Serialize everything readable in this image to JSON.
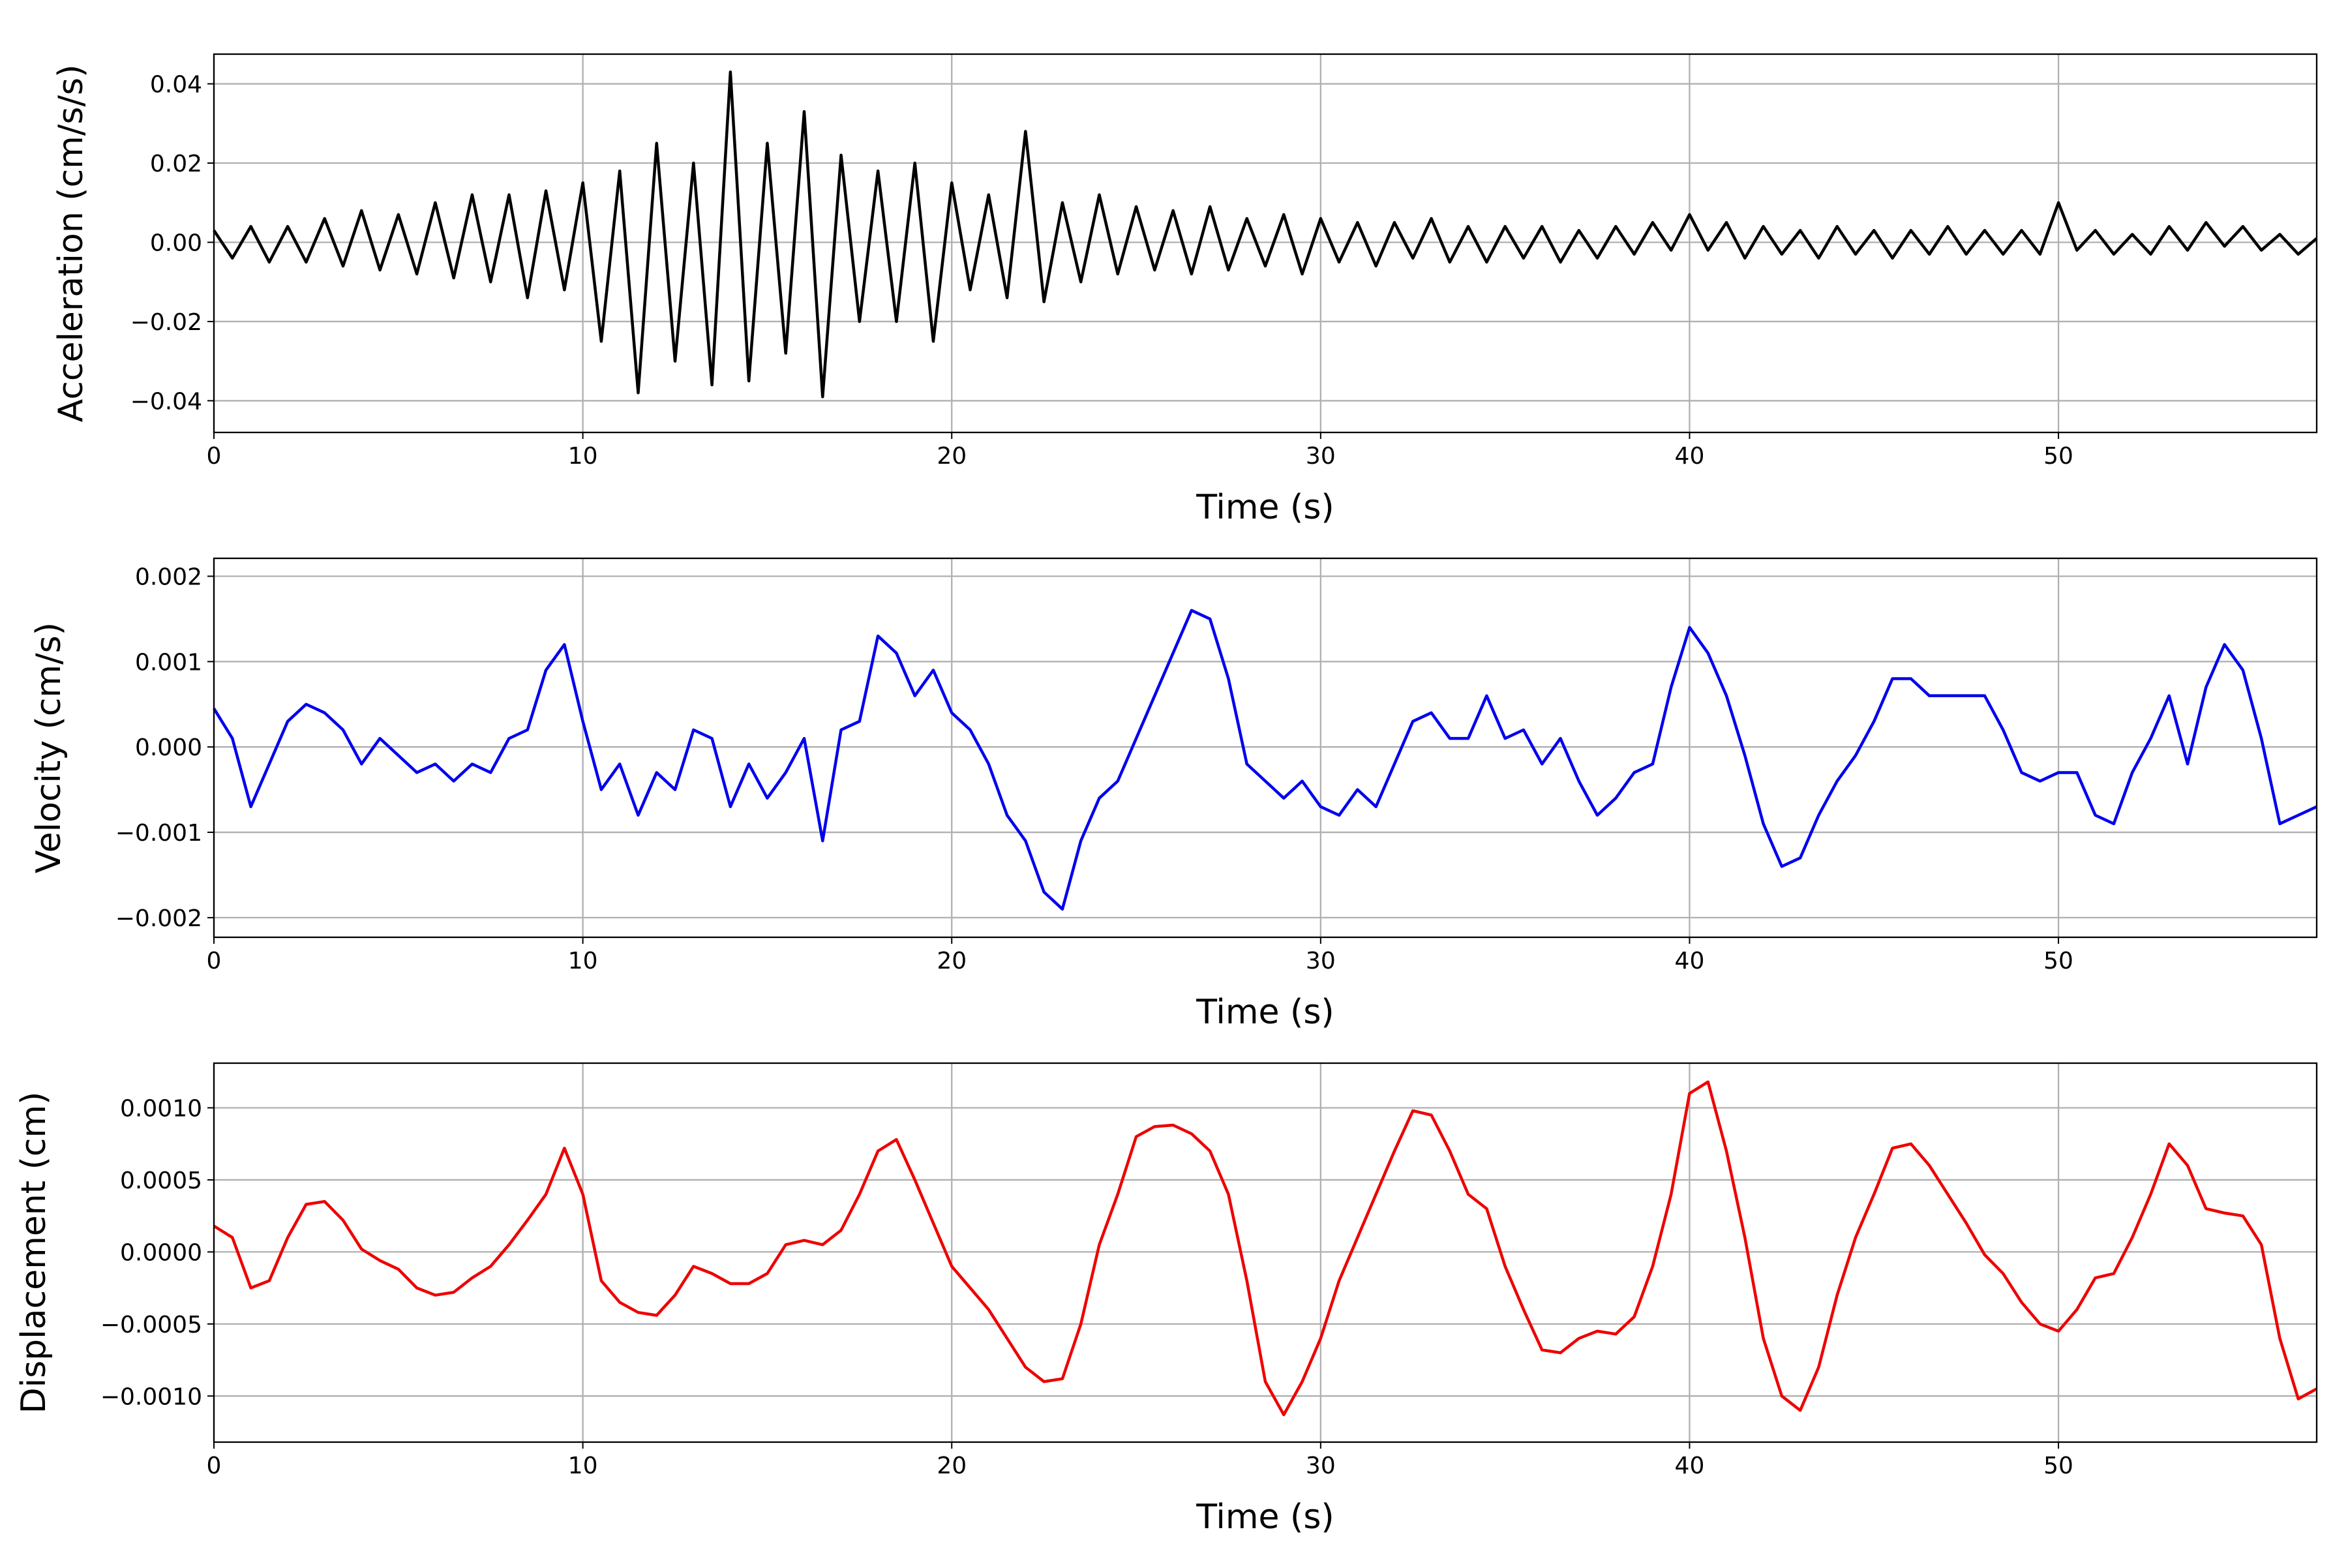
{
  "chart_data": [
    {
      "type": "line",
      "ylabel": "Acceleration (cm/s/s)",
      "xlabel": "Time (s)",
      "color": "#000000",
      "grid": true,
      "xlim": [
        0,
        57
      ],
      "xticks": [
        0,
        10,
        20,
        30,
        40,
        50
      ],
      "ylim": [
        -0.048,
        0.0475
      ],
      "yticks": [
        {
          "value": -0.04,
          "label": "−0.04"
        },
        {
          "value": -0.02,
          "label": "−0.02"
        },
        {
          "value": 0,
          "label": "0.00"
        },
        {
          "value": 0.02,
          "label": "0.02"
        },
        {
          "value": 0.04,
          "label": "0.04"
        }
      ],
      "x": [
        0,
        0.5,
        1,
        1.5,
        2,
        2.5,
        3,
        3.5,
        4,
        4.5,
        5,
        5.5,
        6,
        6.5,
        7,
        7.5,
        8,
        8.5,
        9,
        9.5,
        10,
        10.5,
        11,
        11.5,
        12,
        12.5,
        13,
        13.5,
        14,
        14.5,
        15,
        15.5,
        16,
        16.5,
        17,
        17.5,
        18,
        18.5,
        19,
        19.5,
        20,
        20.5,
        21,
        21.5,
        22,
        22.5,
        23,
        23.5,
        24,
        24.5,
        25,
        25.5,
        26,
        26.5,
        27,
        27.5,
        28,
        28.5,
        29,
        29.5,
        30,
        30.5,
        31,
        31.5,
        32,
        32.5,
        33,
        33.5,
        34,
        34.5,
        35,
        35.5,
        36,
        36.5,
        37,
        37.5,
        38,
        38.5,
        39,
        39.5,
        40,
        40.5,
        41,
        41.5,
        42,
        42.5,
        43,
        43.5,
        44,
        44.5,
        45,
        45.5,
        46,
        46.5,
        47,
        47.5,
        48,
        48.5,
        49,
        49.5,
        50,
        50.5,
        51,
        51.5,
        52,
        52.5,
        53,
        53.5,
        54,
        54.5,
        55,
        55.5,
        56,
        56.5,
        57
      ],
      "values": [
        0.003,
        -0.004,
        0.004,
        -0.005,
        0.004,
        -0.005,
        0.006,
        -0.006,
        0.008,
        -0.007,
        0.007,
        -0.008,
        0.01,
        -0.009,
        0.012,
        -0.01,
        0.012,
        -0.014,
        0.013,
        -0.012,
        0.015,
        -0.025,
        0.018,
        -0.038,
        0.025,
        -0.03,
        0.02,
        -0.036,
        0.043,
        -0.035,
        0.025,
        -0.028,
        0.033,
        -0.039,
        0.022,
        -0.02,
        0.018,
        -0.02,
        0.02,
        -0.025,
        0.015,
        -0.012,
        0.012,
        -0.014,
        0.028,
        -0.015,
        0.01,
        -0.01,
        0.012,
        -0.008,
        0.009,
        -0.007,
        0.008,
        -0.008,
        0.009,
        -0.007,
        0.006,
        -0.006,
        0.007,
        -0.008,
        0.006,
        -0.005,
        0.005,
        -0.006,
        0.005,
        -0.004,
        0.006,
        -0.005,
        0.004,
        -0.005,
        0.004,
        -0.004,
        0.004,
        -0.005,
        0.003,
        -0.004,
        0.004,
        -0.003,
        0.005,
        -0.002,
        0.007,
        -0.002,
        0.005,
        -0.004,
        0.004,
        -0.003,
        0.003,
        -0.004,
        0.004,
        -0.003,
        0.003,
        -0.004,
        0.003,
        -0.003,
        0.004,
        -0.003,
        0.003,
        -0.003,
        0.003,
        -0.003,
        0.01,
        -0.002,
        0.003,
        -0.003,
        0.002,
        -0.003,
        0.004,
        -0.002,
        0.005,
        -0.001,
        0.004,
        -0.002,
        0.002,
        -0.003,
        0.001
      ]
    },
    {
      "type": "line",
      "ylabel": "Velocity (cm/s)",
      "xlabel": "Time (s)",
      "color": "#0000ee",
      "grid": true,
      "xlim": [
        0,
        57
      ],
      "xticks": [
        0,
        10,
        20,
        30,
        40,
        50
      ],
      "ylim": [
        -0.00223,
        0.00221
      ],
      "yticks": [
        {
          "value": -0.002,
          "label": "−0.002"
        },
        {
          "value": -0.001,
          "label": "−0.001"
        },
        {
          "value": 0,
          "label": "0.000"
        },
        0.001,
        0.002
      ],
      "x": [
        0,
        0.5,
        1,
        1.5,
        2,
        2.5,
        3,
        3.5,
        4,
        4.5,
        5,
        5.5,
        6,
        6.5,
        7,
        7.5,
        8,
        8.5,
        9,
        9.5,
        10,
        10.5,
        11,
        11.5,
        12,
        12.5,
        13,
        13.5,
        14,
        14.5,
        15,
        15.5,
        16,
        16.5,
        17,
        17.5,
        18,
        18.5,
        19,
        19.5,
        20,
        20.5,
        21,
        21.5,
        22,
        22.5,
        23,
        23.5,
        24,
        24.5,
        25,
        25.5,
        26,
        26.5,
        27,
        27.5,
        28,
        28.5,
        29,
        29.5,
        30,
        30.5,
        31,
        31.5,
        32,
        32.5,
        33,
        33.5,
        34,
        34.5,
        35,
        35.5,
        36,
        36.5,
        37,
        37.5,
        38,
        38.5,
        39,
        39.5,
        40,
        40.5,
        41,
        41.5,
        42,
        42.5,
        43,
        43.5,
        44,
        44.5,
        45,
        45.5,
        46,
        46.5,
        47,
        47.5,
        48,
        48.5,
        49,
        49.5,
        50,
        50.5,
        51,
        51.5,
        52,
        52.5,
        53,
        53.5,
        54,
        54.5,
        55,
        55.5,
        56,
        56.5,
        57
      ],
      "values": [
        0.00045,
        0.0001,
        -0.0007,
        -0.0002,
        0.0003,
        0.0005,
        0.0004,
        0.0002,
        -0.0002,
        0.0001,
        -0.0001,
        -0.0003,
        -0.0002,
        -0.0004,
        -0.0002,
        -0.0003,
        0.0001,
        0.0002,
        0.0009,
        0.0012,
        0.0003,
        -0.0005,
        -0.0002,
        -0.0008,
        -0.0003,
        -0.0005,
        0.0002,
        0.0001,
        -0.0007,
        -0.0002,
        -0.0006,
        -0.0003,
        0.0001,
        -0.0011,
        0.0002,
        0.0003,
        0.0013,
        0.0011,
        0.0006,
        0.0009,
        0.0004,
        0.0002,
        -0.0002,
        -0.0008,
        -0.0011,
        -0.0017,
        -0.0019,
        -0.0011,
        -0.0006,
        -0.0004,
        0.0001,
        0.0006,
        0.0011,
        0.0016,
        0.0015,
        0.0008,
        -0.0002,
        -0.0004,
        -0.0006,
        -0.0004,
        -0.0007,
        -0.0008,
        -0.0005,
        -0.0007,
        -0.0002,
        0.0003,
        0.0004,
        0.0001,
        0.0001,
        0.0006,
        0.0001,
        0.0002,
        -0.0002,
        0.0001,
        -0.0004,
        -0.0008,
        -0.0006,
        -0.0003,
        -0.0002,
        0.0007,
        0.0014,
        0.0011,
        0.0006,
        -0.0001,
        -0.0009,
        -0.0014,
        -0.0013,
        -0.0008,
        -0.0004,
        -0.0001,
        0.0003,
        0.0008,
        0.0008,
        0.0006,
        0.0006,
        0.0006,
        0.0006,
        0.0002,
        -0.0003,
        -0.0004,
        -0.0003,
        -0.0003,
        -0.0008,
        -0.0009,
        -0.0003,
        0.0001,
        0.0006,
        -0.0002,
        0.0007,
        0.0012,
        0.0009,
        0.0001,
        -0.0009,
        -0.0008,
        -0.0007
      ]
    },
    {
      "type": "line",
      "ylabel": "Displacement (cm)",
      "xlabel": "Time (s)",
      "color": "#ee0000",
      "grid": true,
      "xlim": [
        0,
        57
      ],
      "xticks": [
        0,
        10,
        20,
        30,
        40,
        50
      ],
      "ylim": [
        -0.00132,
        0.00131
      ],
      "yticks": [
        {
          "value": -0.001,
          "label": "−0.0010"
        },
        {
          "value": -0.0005,
          "label": "−0.0005"
        },
        {
          "value": 0,
          "label": "0.0000"
        },
        {
          "value": 0.0005,
          "label": "0.0005"
        },
        {
          "value": 0.001,
          "label": "0.0010"
        }
      ],
      "x": [
        0,
        0.5,
        1,
        1.5,
        2,
        2.5,
        3,
        3.5,
        4,
        4.5,
        5,
        5.5,
        6,
        6.5,
        7,
        7.5,
        8,
        8.5,
        9,
        9.5,
        10,
        10.5,
        11,
        11.5,
        12,
        12.5,
        13,
        13.5,
        14,
        14.5,
        15,
        15.5,
        16,
        16.5,
        17,
        17.5,
        18,
        18.5,
        19,
        19.5,
        20,
        20.5,
        21,
        21.5,
        22,
        22.5,
        23,
        23.5,
        24,
        24.5,
        25,
        25.5,
        26,
        26.5,
        27,
        27.5,
        28,
        28.5,
        29,
        29.5,
        30,
        30.5,
        31,
        31.5,
        32,
        32.5,
        33,
        33.5,
        34,
        34.5,
        35,
        35.5,
        36,
        36.5,
        37,
        37.5,
        38,
        38.5,
        39,
        39.5,
        40,
        40.5,
        41,
        41.5,
        42,
        42.5,
        43,
        43.5,
        44,
        44.5,
        45,
        45.5,
        46,
        46.5,
        47,
        47.5,
        48,
        48.5,
        49,
        49.5,
        50,
        50.5,
        51,
        51.5,
        52,
        52.5,
        53,
        53.5,
        54,
        54.5,
        55,
        55.5,
        56,
        56.5,
        57
      ],
      "values": [
        0.00018,
        0.0001,
        -0.00025,
        -0.0002,
        0.0001,
        0.00033,
        0.00035,
        0.00022,
        2e-05,
        -6e-05,
        -0.00012,
        -0.00025,
        -0.0003,
        -0.00028,
        -0.00018,
        -0.0001,
        5e-05,
        0.00022,
        0.0004,
        0.00072,
        0.0004,
        -0.0002,
        -0.00035,
        -0.00042,
        -0.00044,
        -0.0003,
        -0.0001,
        -0.00015,
        -0.00022,
        -0.00022,
        -0.00015,
        5e-05,
        8e-05,
        5e-05,
        0.00015,
        0.0004,
        0.0007,
        0.00078,
        0.0005,
        0.0002,
        -0.0001,
        -0.00025,
        -0.0004,
        -0.0006,
        -0.0008,
        -0.0009,
        -0.00088,
        -0.0005,
        5e-05,
        0.0004,
        0.0008,
        0.00087,
        0.00088,
        0.00082,
        0.0007,
        0.0004,
        -0.0002,
        -0.0009,
        -0.00113,
        -0.0009,
        -0.0006,
        -0.0002,
        0.0001,
        0.0004,
        0.0007,
        0.00098,
        0.00095,
        0.0007,
        0.0004,
        0.0003,
        -0.0001,
        -0.0004,
        -0.00068,
        -0.0007,
        -0.0006,
        -0.00055,
        -0.00057,
        -0.00045,
        -0.0001,
        0.0004,
        0.0011,
        0.00118,
        0.0007,
        0.0001,
        -0.0006,
        -0.001,
        -0.0011,
        -0.0008,
        -0.0003,
        0.0001,
        0.0004,
        0.00072,
        0.00075,
        0.0006,
        0.0004,
        0.0002,
        -2e-05,
        -0.00015,
        -0.00035,
        -0.0005,
        -0.00055,
        -0.0004,
        -0.00018,
        -0.00015,
        0.0001,
        0.0004,
        0.00075,
        0.0006,
        0.0003,
        0.00027,
        0.00025,
        5e-05,
        -0.0006,
        -0.00102,
        -0.00095
      ]
    }
  ]
}
